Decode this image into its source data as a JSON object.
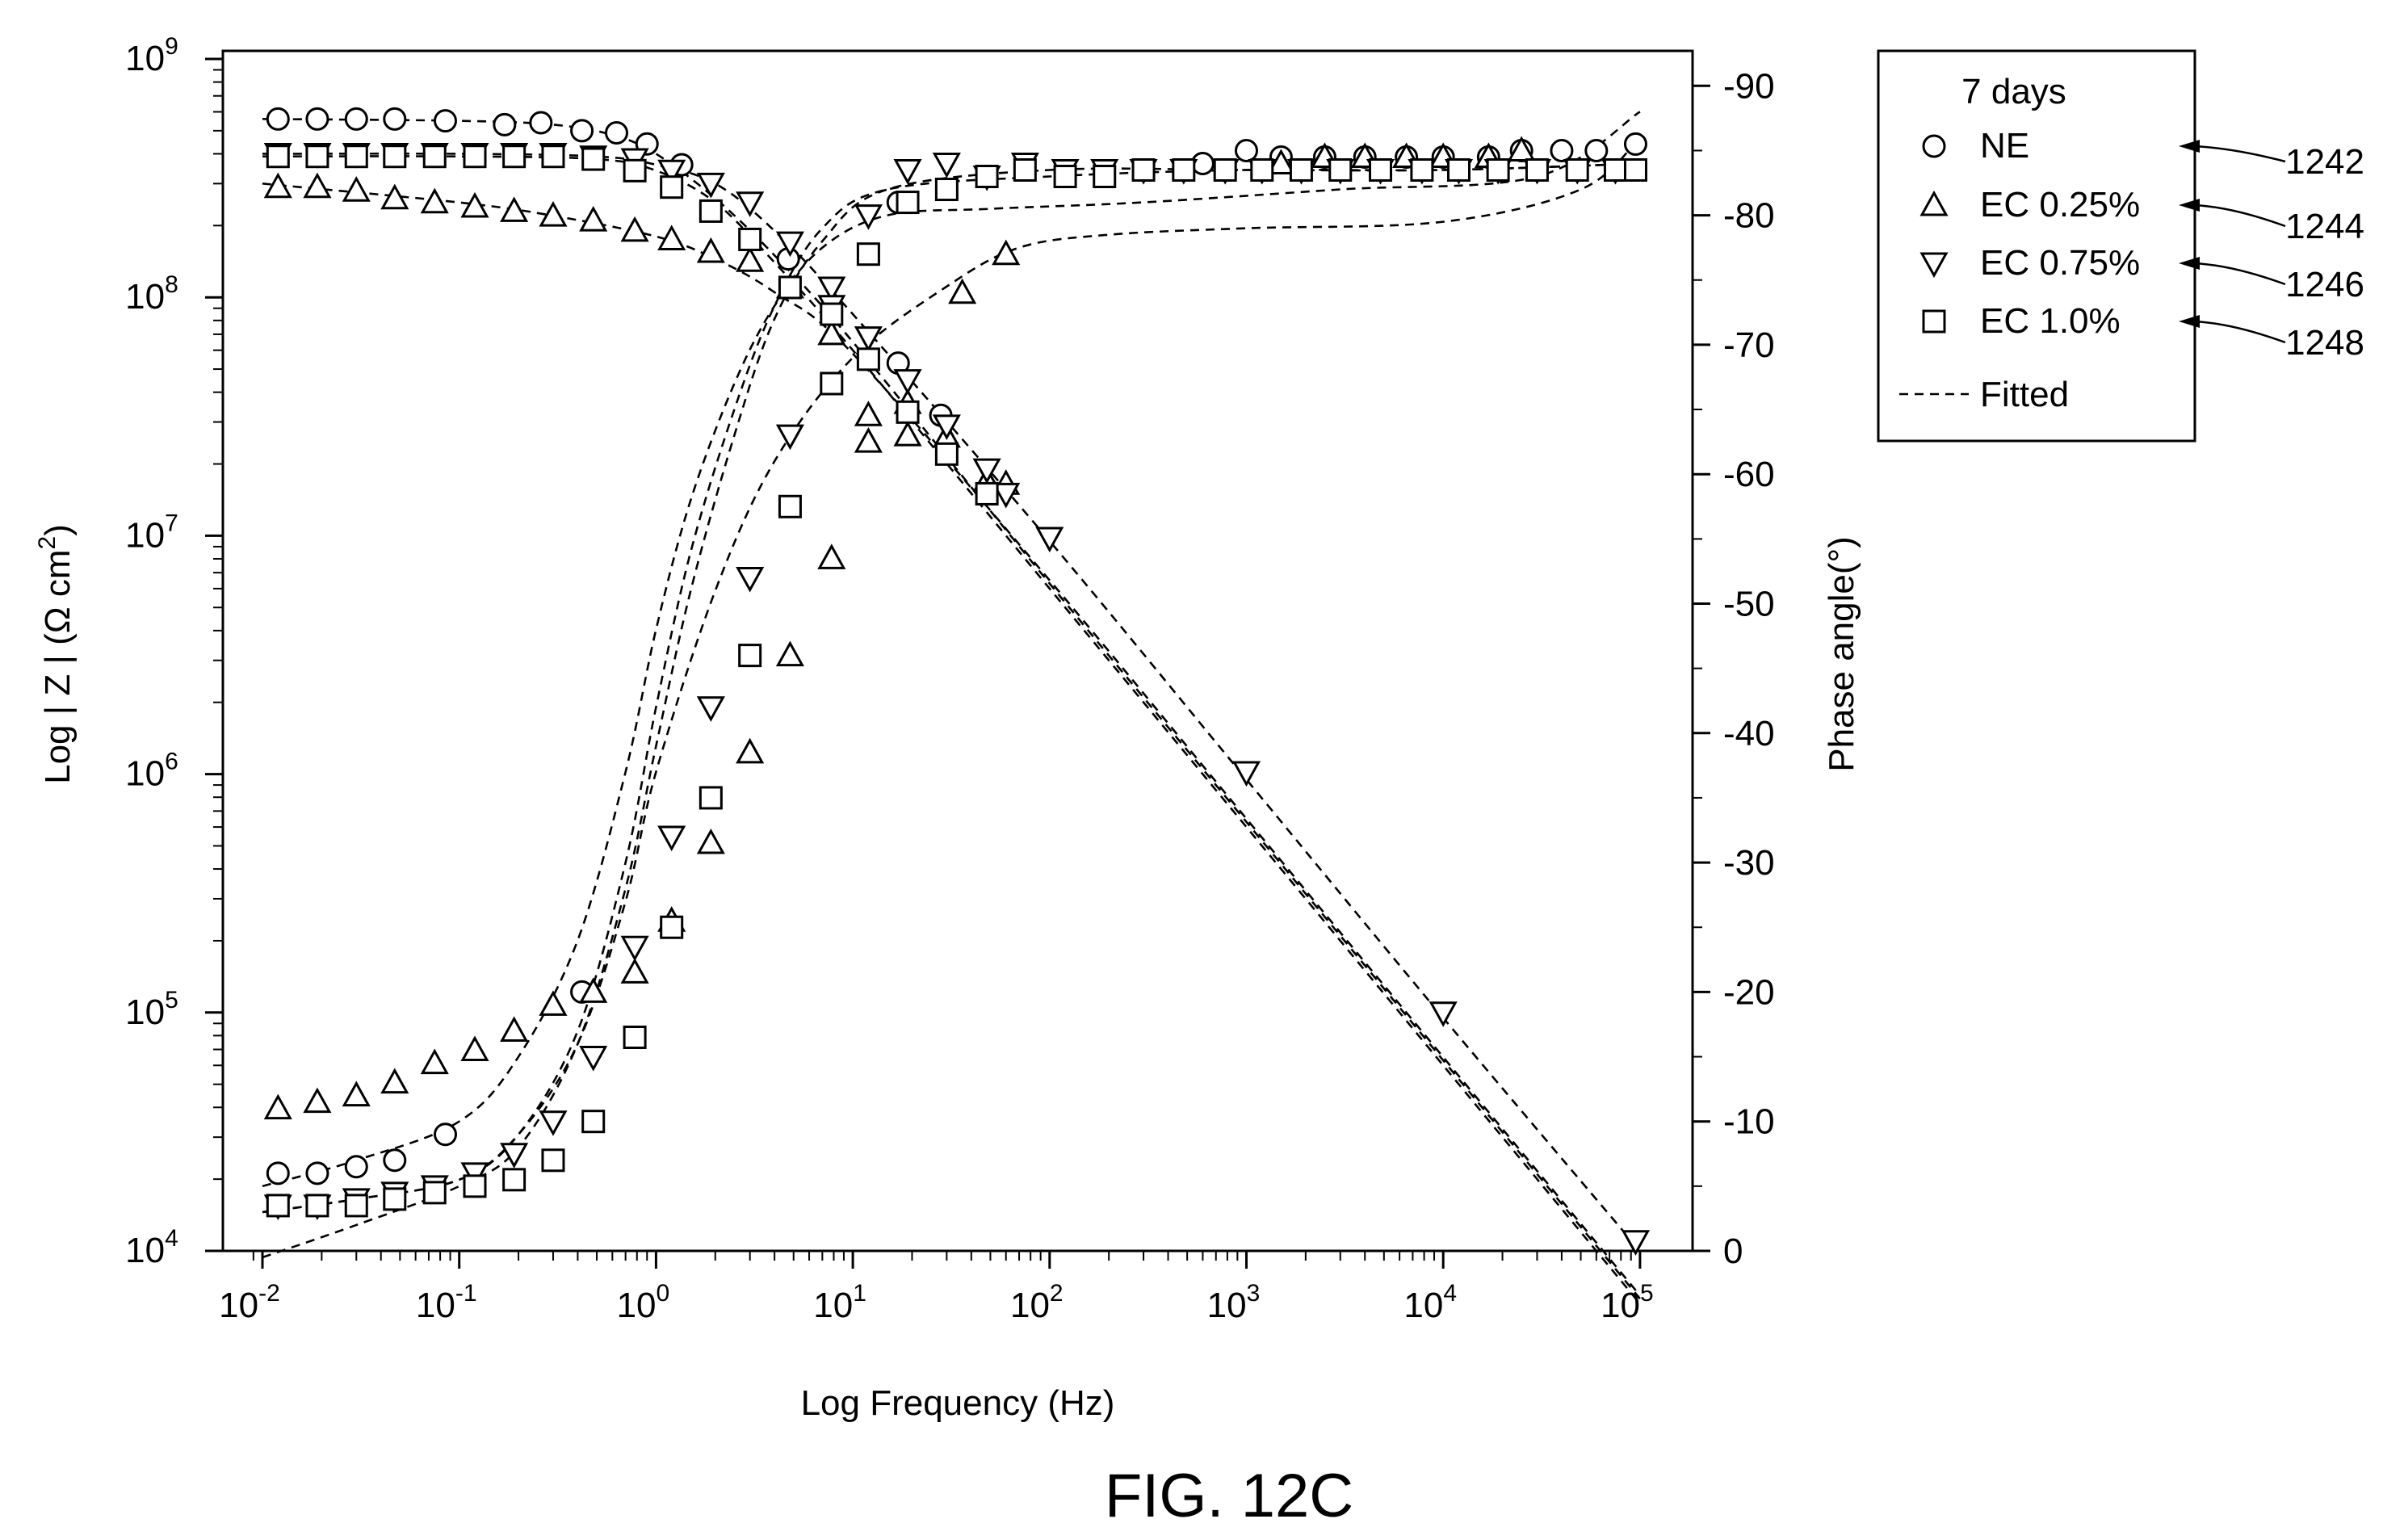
{
  "figure_label": "FIG. 12C",
  "legend": {
    "title": "7 days",
    "entries": [
      {
        "label": "NE",
        "marker": "circle",
        "ref": "1242"
      },
      {
        "label": "EC 0.25%",
        "marker": "triangle-up",
        "ref": "1244"
      },
      {
        "label": "EC 0.75%",
        "marker": "triangle-down",
        "ref": "1246"
      },
      {
        "label": "EC 1.0%",
        "marker": "square",
        "ref": "1248"
      }
    ],
    "fitted_label": "Fitted"
  },
  "chart_data": {
    "type": "scatter",
    "xlabel": "Log Frequency (Hz)",
    "ylabel_left": "Log | Z | (Ω cm²)",
    "ylabel_right": "Phase angle(°)",
    "x_scale": "log",
    "xlim": [
      0.008,
      150000
    ],
    "y_left_scale": "log",
    "y_left_lim": [
      10000,
      1000000000
    ],
    "y_right_lim": [
      0,
      -90
    ],
    "x_ticks": [
      {
        "base": "10",
        "exp": "-2",
        "value": 0.01
      },
      {
        "base": "10",
        "exp": "-1",
        "value": 0.1
      },
      {
        "base": "10",
        "exp": "0",
        "value": 1
      },
      {
        "base": "10",
        "exp": "1",
        "value": 10
      },
      {
        "base": "10",
        "exp": "2",
        "value": 100
      },
      {
        "base": "10",
        "exp": "3",
        "value": 1000
      },
      {
        "base": "10",
        "exp": "4",
        "value": 10000
      },
      {
        "base": "10",
        "exp": "5",
        "value": 100000
      }
    ],
    "y_left_ticks": [
      {
        "base": "10",
        "exp": "4",
        "value": 10000
      },
      {
        "base": "10",
        "exp": "5",
        "value": 100000
      },
      {
        "base": "10",
        "exp": "6",
        "value": 1000000
      },
      {
        "base": "10",
        "exp": "7",
        "value": 10000000
      },
      {
        "base": "10",
        "exp": "8",
        "value": 100000000
      },
      {
        "base": "10",
        "exp": "9",
        "value": 1000000000
      }
    ],
    "y_right_ticks": [
      "0",
      "-10",
      "-20",
      "-30",
      "-40",
      "-50",
      "-60",
      "-70",
      "-80",
      "-90"
    ],
    "series": [
      {
        "name": "NE",
        "marker": "circle",
        "impedance": {
          "x": [
            0.012,
            0.019,
            0.03,
            0.047,
            0.085,
            0.17,
            0.26,
            0.42,
            0.63,
            0.9,
            1.35,
            4.7,
            17,
            28
          ],
          "y": [
            560000000.0,
            560000000.0,
            560000000.0,
            560000000.0,
            550000000.0,
            530000000.0,
            540000000.0,
            500000000.0,
            490000000.0,
            440000000.0,
            360000000.0,
            145000000.0,
            53000000.0,
            32000000.0
          ]
        },
        "phase": {
          "x": [
            0.012,
            0.019,
            0.03,
            0.047,
            0.085,
            0.42,
            17,
            600,
            1000,
            1500,
            2500,
            4000,
            6500,
            10000,
            17000,
            25000,
            40000,
            60000,
            95000
          ],
          "y": [
            -6,
            -6,
            -6.5,
            -7,
            -9,
            -20,
            -81,
            -84,
            -85,
            -84.5,
            -84.5,
            -84.5,
            -84.5,
            -84.5,
            -84.5,
            -85,
            -85,
            -85,
            -85.5
          ]
        }
      },
      {
        "name": "EC 0.25%",
        "marker": "triangle-up",
        "impedance": {
          "x": [
            0.012,
            0.019,
            0.03,
            0.047,
            0.075,
            0.12,
            0.19,
            0.3,
            0.48,
            0.78,
            1.2,
            1.9,
            3,
            4.8,
            7.8,
            12,
            19,
            30,
            48,
            60
          ],
          "y": [
            290000000.0,
            290000000.0,
            280000000.0,
            260000000.0,
            250000000.0,
            240000000.0,
            230000000.0,
            220000000.0,
            210000000.0,
            190000000.0,
            175000000.0,
            155000000.0,
            142000000.0,
            110000000.0,
            70000000.0,
            32000000.0,
            36000000.0,
            26000000.0,
            17000000.0,
            16500000.0
          ]
        },
        "phase": {
          "x": [
            0.012,
            0.019,
            0.03,
            0.047,
            0.075,
            0.12,
            0.19,
            0.3,
            0.48,
            0.78,
            1.2,
            1.9,
            3,
            4.8,
            7.8,
            12,
            19,
            36,
            60,
            1500,
            2500,
            4000,
            6500,
            10000,
            17000,
            25000
          ],
          "y": [
            -11,
            -11.5,
            -12,
            -13,
            -14.5,
            -15.5,
            -17,
            -19,
            -20,
            -21.5,
            -25.5,
            -31.5,
            -38.5,
            -46,
            -53.5,
            -62.5,
            -63,
            -74,
            -77,
            -84,
            -84.5,
            -84.5,
            -84.5,
            -84.5,
            -84.5,
            -85
          ]
        }
      },
      {
        "name": "EC 0.75%",
        "marker": "triangle-down",
        "impedance": {
          "x": [
            0.012,
            0.019,
            0.03,
            0.047,
            0.075,
            0.12,
            0.19,
            0.3,
            0.48,
            0.78,
            1.2,
            1.9,
            3,
            4.8,
            7.8,
            12,
            19,
            30,
            48,
            60,
            100,
            1000,
            10000,
            95000
          ],
          "y": [
            400000000.0,
            400000000.0,
            400000000.0,
            400000000.0,
            400000000.0,
            400000000.0,
            400000000.0,
            400000000.0,
            390000000.0,
            380000000.0,
            340000000.0,
            300000000.0,
            250000000.0,
            170000000.0,
            110000000.0,
            68000000.0,
            45000000.0,
            29000000.0,
            19000000.0,
            15000000.0,
            9800000.0,
            1020000.0,
            100000.0,
            11000.0
          ]
        },
        "phase": {
          "x": [
            0.012,
            0.019,
            0.03,
            0.047,
            0.075,
            0.12,
            0.19,
            0.3,
            0.48,
            0.78,
            1.2,
            1.9,
            3,
            4.8,
            7.8,
            12,
            19,
            30,
            48,
            75,
            120,
            190,
            300,
            480,
            780,
            1200,
            1900,
            3000,
            4800,
            7800,
            12000,
            19000,
            30000,
            48000,
            75000
          ],
          "y": [
            -3.5,
            -3.5,
            -4,
            -4.5,
            -5,
            -6,
            -7.5,
            -10,
            -15,
            -23.5,
            -32,
            -42,
            -52,
            -63,
            -73,
            -80,
            -83.5,
            -84,
            -83,
            -84,
            -83.5,
            -83.5,
            -83.5,
            -83.5,
            -83.5,
            -83.5,
            -83.5,
            -83.5,
            -83.5,
            -83.5,
            -83.5,
            -83.5,
            -83.5,
            -83.5,
            -83.5
          ]
        }
      },
      {
        "name": "EC 1.0%",
        "marker": "square",
        "impedance": {
          "x": [
            0.012,
            0.019,
            0.03,
            0.047,
            0.075,
            0.12,
            0.19,
            0.3,
            0.48,
            0.78,
            1.2,
            1.9,
            3,
            4.8,
            7.8,
            12,
            19,
            30,
            48
          ],
          "y": [
            390000000.0,
            390000000.0,
            390000000.0,
            390000000.0,
            390000000.0,
            390000000.0,
            390000000.0,
            390000000.0,
            380000000.0,
            340000000.0,
            290000000.0,
            230000000.0,
            175000000.0,
            110000000.0,
            85000000.0,
            55000000.0,
            33000000.0,
            22000000.0,
            15000000.0
          ]
        },
        "phase": {
          "x": [
            0.012,
            0.019,
            0.03,
            0.047,
            0.075,
            0.12,
            0.19,
            0.3,
            0.48,
            0.78,
            1.2,
            1.9,
            3,
            4.8,
            7.8,
            12,
            19,
            30,
            48,
            75,
            120,
            190,
            300,
            480,
            780,
            1200,
            1900,
            3000,
            4800,
            7800,
            12000,
            19000,
            30000,
            48000,
            75000,
            95000
          ],
          "y": [
            -3.5,
            -3.5,
            -3.5,
            -4,
            -4.5,
            -5,
            -5.5,
            -7,
            -10,
            -16.5,
            -25,
            -35,
            -46,
            -57.5,
            -67,
            -77,
            -81,
            -82,
            -83,
            -83.5,
            -83,
            -83,
            -83.5,
            -83.5,
            -83.5,
            -83.5,
            -83.5,
            -83.5,
            -83.5,
            -83.5,
            -83.5,
            -83.5,
            -83.5,
            -83.5,
            -83.5,
            -83.5
          ]
        }
      }
    ],
    "fitted": [
      {
        "name": "NE",
        "impedance": {
          "x": [
            0.01,
            0.1,
            0.3,
            0.6,
            1,
            2,
            4,
            10,
            100,
            1000,
            10000,
            100000
          ],
          "y": [
            560000000.0,
            550000000.0,
            530000000.0,
            480000000.0,
            400000000.0,
            260000000.0,
            150000000.0,
            65000000.0,
            6300000.0,
            630000.0,
            63000.0,
            6300.0
          ]
        }
      },
      {
        "name": "EC 0.25%",
        "impedance": {
          "x": [
            0.01,
            0.1,
            0.3,
            1,
            2,
            4,
            10,
            100,
            1000,
            10000,
            100000
          ],
          "y": [
            300000000.0,
            250000000.0,
            220000000.0,
            180000000.0,
            145000000.0,
            105000000.0,
            58000000.0,
            6500000.0,
            650000.0,
            65000.0,
            6500.0
          ]
        }
      },
      {
        "name": "EC 0.75%",
        "impedance": {
          "x": [
            0.01,
            0.1,
            0.5,
            1,
            2,
            4,
            10,
            100,
            1000,
            10000,
            100000
          ],
          "y": [
            400000000.0,
            400000000.0,
            390000000.0,
            360000000.0,
            300000000.0,
            190000000.0,
            85000000.0,
            9500000.0,
            950000.0,
            95000.0,
            10000.0
          ]
        }
      },
      {
        "name": "EC 1.0%",
        "impedance": {
          "x": [
            0.01,
            0.1,
            0.5,
            1,
            2,
            4,
            10,
            100,
            1000,
            10000,
            100000
          ],
          "y": [
            390000000.0,
            390000000.0,
            380000000.0,
            340000000.0,
            250000000.0,
            140000000.0,
            60000000.0,
            6000000.0,
            600000.0,
            60000.0,
            6000.0
          ]
        }
      },
      {
        "name": "NE",
        "phase": {
          "x": [
            0.01,
            0.03,
            0.1,
            0.2,
            0.4,
            0.7,
            1,
            1.5,
            2.5,
            4,
            7,
            15,
            50,
            300,
            3000,
            30000,
            100000
          ],
          "y": [
            -5,
            -7,
            -10,
            -15,
            -24,
            -37,
            -48,
            -58,
            -67,
            -73,
            -77.5,
            -80,
            -80.5,
            -81,
            -82,
            -83,
            -88
          ]
        }
      },
      {
        "name": "EC 0.25%",
        "phase": {
          "x": [
            0.01,
            0.03,
            0.1,
            0.2,
            0.4,
            0.7,
            1,
            2,
            4,
            10,
            30,
            70,
            200,
            1000,
            10000,
            50000,
            100000
          ],
          "y": [
            -3,
            -4,
            -5.5,
            -9,
            -16,
            -27,
            -37,
            -51,
            -61,
            -69,
            -74.5,
            -77.5,
            -78.5,
            -79,
            -79.5,
            -82,
            -86
          ]
        }
      },
      {
        "name": "EC 0.75%",
        "phase": {
          "x": [
            0.01,
            0.03,
            0.1,
            0.2,
            0.4,
            0.7,
            1,
            1.5,
            2.5,
            4,
            7,
            15,
            100,
            1000,
            10000,
            100000
          ],
          "y": [
            0.5,
            -2,
            -5,
            -8,
            -16,
            -28,
            -39,
            -51,
            -63,
            -72,
            -78,
            -82,
            -83.5,
            -83.5,
            -83.5,
            -84
          ]
        }
      },
      {
        "name": "EC 1.0%",
        "phase": {
          "x": [
            0.01,
            0.03,
            0.1,
            0.2,
            0.4,
            0.7,
            1,
            1.5,
            2.5,
            4,
            7,
            15,
            100,
            1000,
            10000,
            100000
          ],
          "y": [
            -3,
            -4,
            -5.5,
            -9,
            -17,
            -30,
            -42,
            -54,
            -65,
            -73,
            -79,
            -82,
            -83,
            -83.5,
            -83.5,
            -84
          ]
        }
      }
    ]
  }
}
